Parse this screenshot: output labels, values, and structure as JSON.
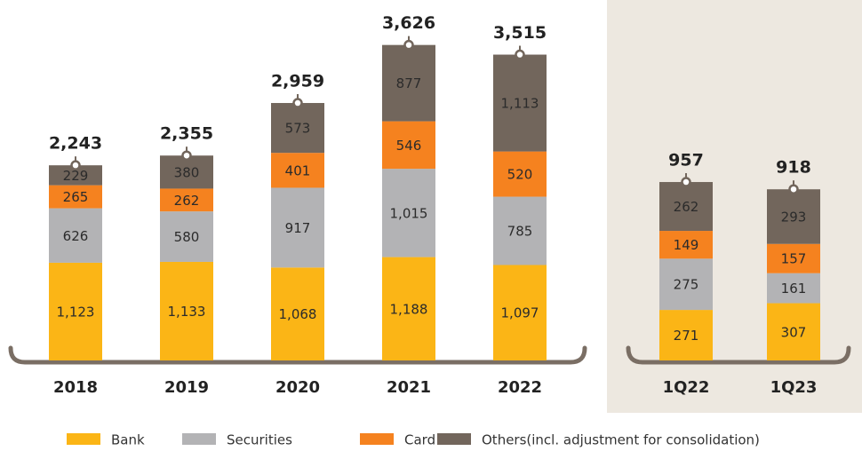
{
  "chart_data": [
    {
      "type": "stacked-bar",
      "categories": [
        "2018",
        "2019",
        "2020",
        "2021",
        "2022"
      ],
      "series": [
        {
          "name": "Bank",
          "color": "#fbb516",
          "values": [
            1123,
            1133,
            1068,
            1188,
            1097
          ],
          "value_labels": [
            "1,123",
            "1,133",
            "1,068",
            "1,188",
            "1,097"
          ]
        },
        {
          "name": "Securities",
          "color": "#b3b3b5",
          "values": [
            626,
            580,
            917,
            1015,
            785
          ],
          "value_labels": [
            "626",
            "580",
            "917",
            "1,015",
            "785"
          ]
        },
        {
          "name": "Card",
          "color": "#f5821f",
          "values": [
            265,
            262,
            401,
            546,
            520
          ],
          "value_labels": [
            "265",
            "262",
            "401",
            "546",
            "520"
          ]
        },
        {
          "name": "Others(incl. adjustment for consolidation)",
          "color": "#72665c",
          "values": [
            229,
            380,
            573,
            877,
            1113
          ],
          "value_labels": [
            "229",
            "380",
            "573",
            "877",
            "1,113"
          ]
        }
      ],
      "totals": [
        2243,
        2355,
        2959,
        3626,
        3515
      ],
      "total_labels": [
        "2,243",
        "2,355",
        "2,959",
        "3,626",
        "3,515"
      ]
    },
    {
      "type": "stacked-bar",
      "categories": [
        "1Q22",
        "1Q23"
      ],
      "series": [
        {
          "color": "#fbb516",
          "values": [
            271,
            307
          ]
        },
        {
          "color": "#b3b3b5",
          "values": [
            275,
            161
          ]
        },
        {
          "color": "#f5821f",
          "values": [
            149,
            157
          ]
        },
        {
          "color": "#72665c",
          "values": [
            262,
            293
          ]
        }
      ],
      "totals": [
        957,
        918
      ]
    }
  ]
}
